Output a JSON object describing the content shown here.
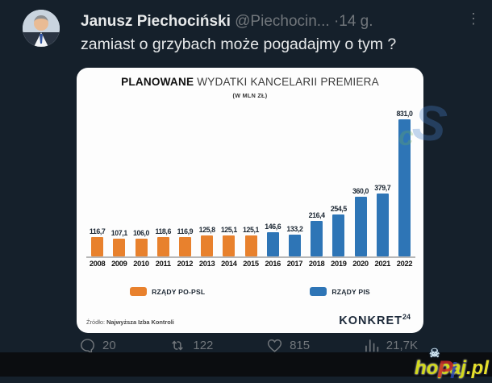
{
  "tweet": {
    "author": "Janusz Piechociński",
    "handle": "@Piechocin...",
    "separator": "·",
    "time": "14 g.",
    "more_icon": "⋮",
    "text": "zamiast o grzybach może pogadajmy o tym ?",
    "actions": {
      "replies": "20",
      "retweets": "122",
      "likes": "815",
      "views": "21,7K"
    }
  },
  "chart": {
    "title_bold": "PLANOWANE",
    "title_rest": " WYDATKI KANCELARII PREMIERA",
    "subtitle": "(W MLN ZŁ)",
    "source_label": "Źródło:",
    "source_value": "Najwyższa Izba Kontroli",
    "logo_text": "KONKRET",
    "logo_sup": "24"
  },
  "chart_data": {
    "type": "bar",
    "title": "PLANOWANE WYDATKI KANCELARII PREMIERA",
    "subtitle": "(W MLN ZŁ)",
    "categories": [
      "2008",
      "2009",
      "2010",
      "2011",
      "2012",
      "2013",
      "2014",
      "2015",
      "2016",
      "2017",
      "2018",
      "2019",
      "2020",
      "2021",
      "2022"
    ],
    "values": [
      116.7,
      107.1,
      106.0,
      118.6,
      116.9,
      125.8,
      125.1,
      125.1,
      146.6,
      133.2,
      216.4,
      254.5,
      360.0,
      379.7,
      831.0
    ],
    "labels": [
      "116,7",
      "107,1",
      "106,0",
      "118,6",
      "116,9",
      "125,8",
      "125,1",
      "125,1",
      "146,6",
      "133,2",
      "216,4",
      "254,5",
      "360,0",
      "379,7",
      "831,0"
    ],
    "series": [
      {
        "name": "RZĄDY PO-PSL",
        "color": "#e8812d",
        "categories": [
          "2008",
          "2009",
          "2010",
          "2011",
          "2012",
          "2013",
          "2014",
          "2015"
        ]
      },
      {
        "name": "RZĄDY PIS",
        "color": "#2e75b6",
        "categories": [
          "2016",
          "2017",
          "2018",
          "2019",
          "2020",
          "2021",
          "2022"
        ]
      }
    ],
    "split_index": 8,
    "ylim": [
      0,
      870
    ],
    "grid": false,
    "legend_position": "bottom",
    "source": "Źródło: Najwyższa Izba Kontroli",
    "branding": "KONKRET24"
  },
  "watermark": {
    "main": "hopaj",
    "suffix": ".pl",
    "ghost_letters": [
      "P",
      "i",
      "c",
      "S"
    ],
    "skull_icon": "☠"
  }
}
